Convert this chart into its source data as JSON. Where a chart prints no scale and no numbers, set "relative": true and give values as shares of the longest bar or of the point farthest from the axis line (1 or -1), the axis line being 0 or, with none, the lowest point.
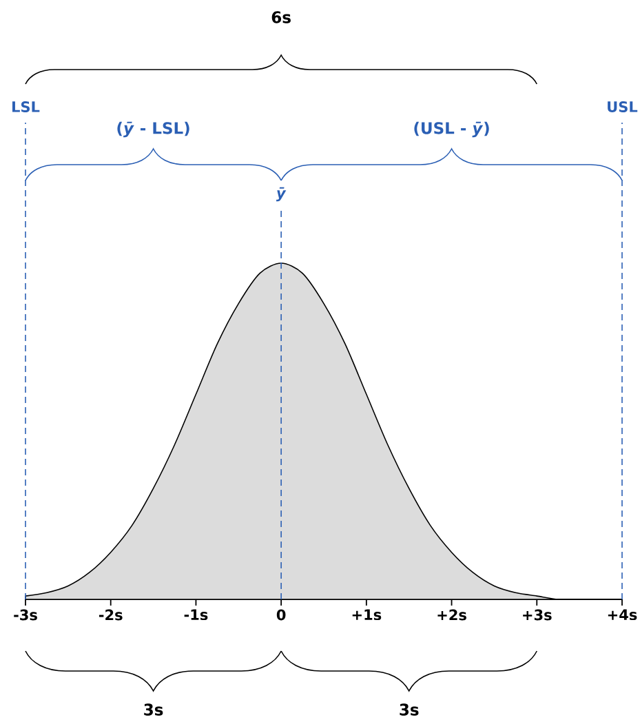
{
  "chart_data": {
    "type": "area",
    "relative": true,
    "x": [
      -3,
      -2.75,
      -2.5,
      -2.25,
      -2,
      -1.75,
      -1.5,
      -1.25,
      -1,
      -0.75,
      -0.5,
      -0.25,
      0,
      0.25,
      0.5,
      0.75,
      1,
      1.25,
      1.5,
      1.75,
      2,
      2.25,
      2.5,
      2.75,
      3,
      3.25,
      3.5,
      3.75,
      4
    ],
    "series": [
      {
        "color": "#dcdcdc",
        "values": [
          0.01,
          0.02,
          0.04,
          0.08,
          0.14,
          0.22,
          0.33,
          0.46,
          0.61,
          0.76,
          0.88,
          0.97,
          1,
          0.97,
          0.88,
          0.76,
          0.61,
          0.46,
          0.33,
          0.22,
          0.14,
          0.08,
          0.04,
          0.02,
          0.01,
          0,
          0,
          0,
          0
        ]
      }
    ],
    "xlim": [
      -3,
      4
    ],
    "xticks": [
      {
        "value": -3,
        "label": "-3s"
      },
      {
        "value": -2,
        "label": "-2s"
      },
      {
        "value": -1,
        "label": "-1s"
      },
      0,
      {
        "value": 1,
        "label": "+1s"
      },
      {
        "value": 2,
        "label": "+2s"
      },
      {
        "value": 3,
        "label": "+3s"
      },
      {
        "value": 4,
        "label": "+4s"
      }
    ],
    "ref_lines": [
      {
        "axis": "x",
        "value": -3,
        "label": "LSL",
        "color": "#2b5fb4",
        "line_style": "dashed"
      },
      {
        "axis": "x",
        "value": 0,
        "label": "*ȳ*",
        "color": "#2b5fb4",
        "line_style": "dashed"
      },
      {
        "axis": "x",
        "value": 4,
        "label": "USL",
        "color": "#2b5fb4",
        "line_style": "dashed"
      }
    ],
    "annotations": [
      "6s",
      "(*ȳ* - LSL)",
      "(USL - *ȳ*)",
      "3s",
      "3s"
    ]
  }
}
